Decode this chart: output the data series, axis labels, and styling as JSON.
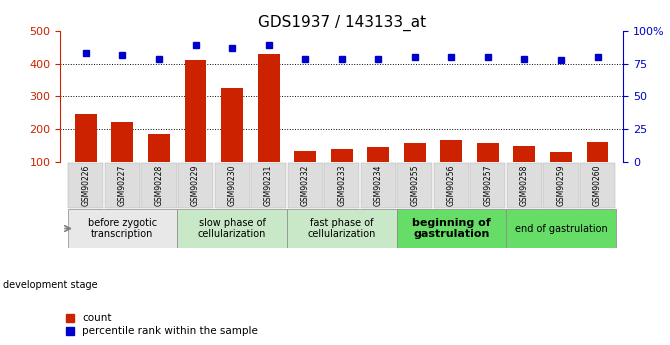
{
  "title": "GDS1937 / 143133_at",
  "samples": [
    "GSM90226",
    "GSM90227",
    "GSM90228",
    "GSM90229",
    "GSM90230",
    "GSM90231",
    "GSM90232",
    "GSM90233",
    "GSM90234",
    "GSM90255",
    "GSM90256",
    "GSM90257",
    "GSM90258",
    "GSM90259",
    "GSM90260"
  ],
  "counts": [
    248,
    222,
    185,
    412,
    325,
    430,
    132,
    138,
    145,
    158,
    168,
    158,
    150,
    130,
    160
  ],
  "percentiles": [
    83,
    82,
    79,
    89,
    87,
    89,
    79,
    79,
    79,
    80,
    80,
    80,
    79,
    78,
    80
  ],
  "bar_color": "#cc2200",
  "dot_color": "#0000cc",
  "ylim_left": [
    100,
    500
  ],
  "ylim_right": [
    0,
    100
  ],
  "yticks_left": [
    100,
    200,
    300,
    400,
    500
  ],
  "yticks_right": [
    0,
    25,
    50,
    75,
    100
  ],
  "yticklabels_right": [
    "0",
    "25",
    "50",
    "75",
    "100%"
  ],
  "grid_values": [
    200,
    300,
    400
  ],
  "stages": [
    {
      "label": "before zygotic\ntranscription",
      "samples": [
        "GSM90226",
        "GSM90227",
        "GSM90228"
      ],
      "color": "#e8e8e8",
      "fontweight": "normal",
      "fontsize": 7
    },
    {
      "label": "slow phase of\ncellularization",
      "samples": [
        "GSM90229",
        "GSM90230",
        "GSM90231"
      ],
      "color": "#c8e8c8",
      "fontweight": "normal",
      "fontsize": 7
    },
    {
      "label": "fast phase of\ncellularization",
      "samples": [
        "GSM90232",
        "GSM90233",
        "GSM90234"
      ],
      "color": "#c8e8c8",
      "fontweight": "normal",
      "fontsize": 7
    },
    {
      "label": "beginning of\ngastrulation",
      "samples": [
        "GSM90255",
        "GSM90256",
        "GSM90257"
      ],
      "color": "#66dd66",
      "fontweight": "bold",
      "fontsize": 8
    },
    {
      "label": "end of gastrulation",
      "samples": [
        "GSM90258",
        "GSM90259",
        "GSM90260"
      ],
      "color": "#66dd66",
      "fontweight": "normal",
      "fontsize": 7
    }
  ],
  "dev_stage_label": "development stage",
  "legend_count_label": "count",
  "legend_pct_label": "percentile rank within the sample",
  "title_fontsize": 11,
  "axis_color_left": "#cc2200",
  "axis_color_right": "#0000cc",
  "tick_label_color": "#666666",
  "tick_label_bg": "#dddddd"
}
